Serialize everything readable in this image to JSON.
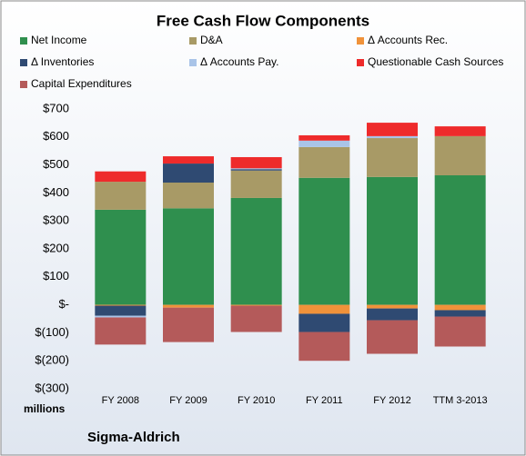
{
  "chart_data": {
    "type": "stacked_bar",
    "title": "Free Cash Flow Components",
    "categories": [
      "FY 2008",
      "FY 2009",
      "FY 2010",
      "FY 2011",
      "FY 2012",
      "TTM 3-2013"
    ],
    "series": [
      {
        "name": "Net Income",
        "color": "#2f8f4e",
        "values": [
          340,
          345,
          382,
          454,
          457,
          463
        ]
      },
      {
        "name": "D&A",
        "color": "#a89a66",
        "values": [
          100,
          92,
          98,
          110,
          139,
          140
        ]
      },
      {
        "name": "Δ Accounts Rec.",
        "color": "#f0923a",
        "values": [
          -3,
          -10,
          -3,
          -32,
          -13,
          -19
        ]
      },
      {
        "name": "Δ Inventories",
        "color": "#2f4a72",
        "values": [
          -36,
          68,
          5,
          -65,
          -42,
          -23
        ]
      },
      {
        "name": "Δ Accounts Pay.",
        "color": "#a9c4e8",
        "values": [
          -6,
          0,
          3,
          23,
          7,
          0
        ]
      },
      {
        "name": "Questionable Cash Sources",
        "color": "#ee2b2b",
        "values": [
          37,
          26,
          40,
          19,
          48,
          35
        ]
      },
      {
        "name": "Capital Expenditures",
        "color": "#b45a5a",
        "values": [
          -97,
          -123,
          -94,
          -103,
          -120,
          -107
        ]
      }
    ],
    "ylim": [
      -300,
      700
    ],
    "yticks": [
      {
        "value": -300,
        "label": "$(300)"
      },
      {
        "value": -200,
        "label": "$(200)"
      },
      {
        "value": -100,
        "label": "$(100)"
      },
      {
        "value": 0,
        "label": "$-"
      },
      {
        "value": 100,
        "label": "$100"
      },
      {
        "value": 200,
        "label": "$200"
      },
      {
        "value": 300,
        "label": "$300"
      },
      {
        "value": 400,
        "label": "$400"
      },
      {
        "value": 500,
        "label": "$500"
      },
      {
        "value": 600,
        "label": "$600"
      },
      {
        "value": 700,
        "label": "$700"
      }
    ],
    "unit_label": "millions",
    "source": "Sigma-Aldrich",
    "grid": false
  }
}
